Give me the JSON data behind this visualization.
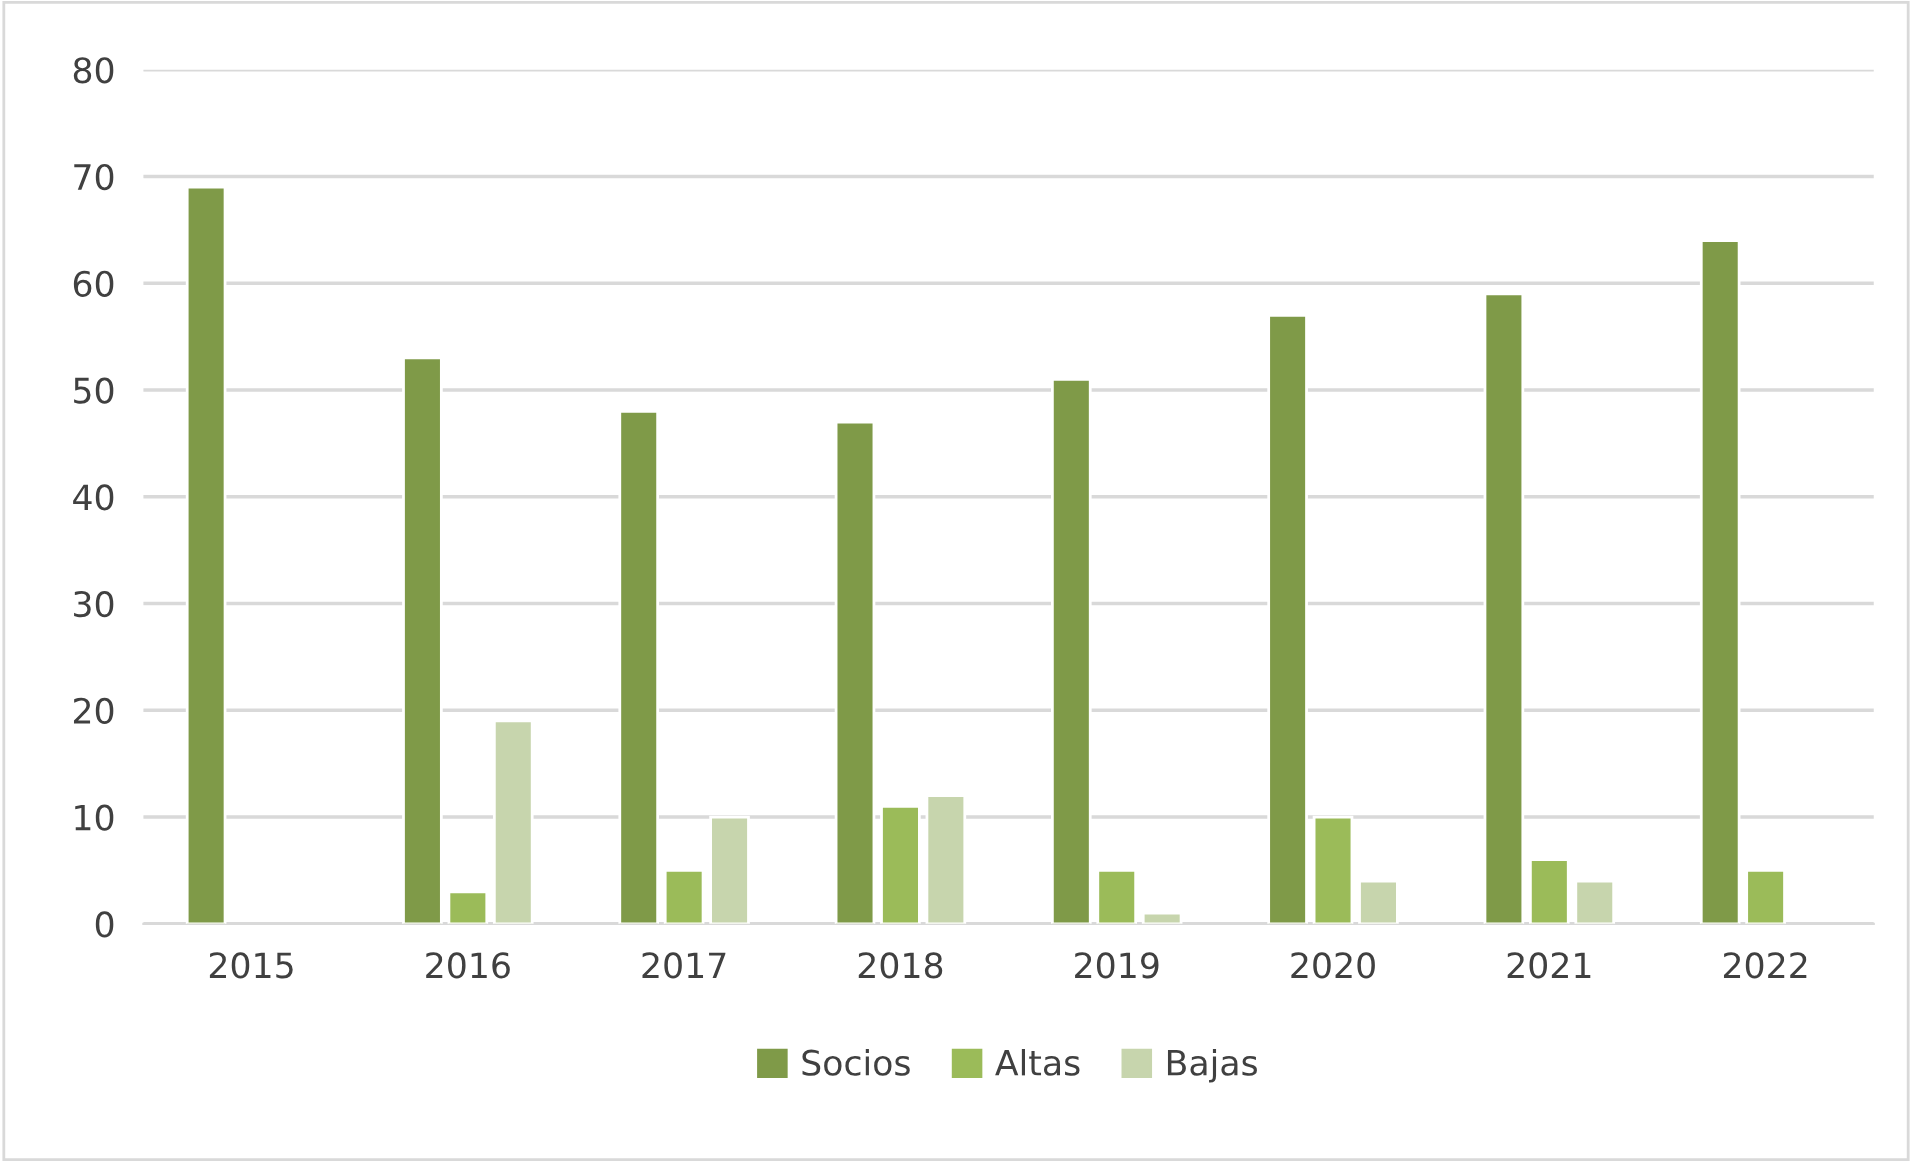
{
  "chart_data": {
    "type": "bar",
    "categories": [
      "2015",
      "2016",
      "2017",
      "2018",
      "2019",
      "2020",
      "2021",
      "2022"
    ],
    "series": [
      {
        "name": "Socios",
        "color": "#7f9a48",
        "values": [
          69,
          53,
          48,
          47,
          51,
          57,
          59,
          64
        ]
      },
      {
        "name": "Altas",
        "color": "#9bbb59",
        "values": [
          null,
          3,
          5,
          11,
          5,
          10,
          6,
          5
        ]
      },
      {
        "name": "Bajas",
        "color": "#c7d5ad",
        "values": [
          null,
          19,
          10,
          12,
          1,
          4,
          4,
          null
        ]
      }
    ],
    "ylim": [
      0,
      80
    ],
    "yticks": [
      0,
      10,
      20,
      30,
      40,
      50,
      60,
      70,
      80
    ],
    "grid": "y",
    "legend": "bottom"
  }
}
